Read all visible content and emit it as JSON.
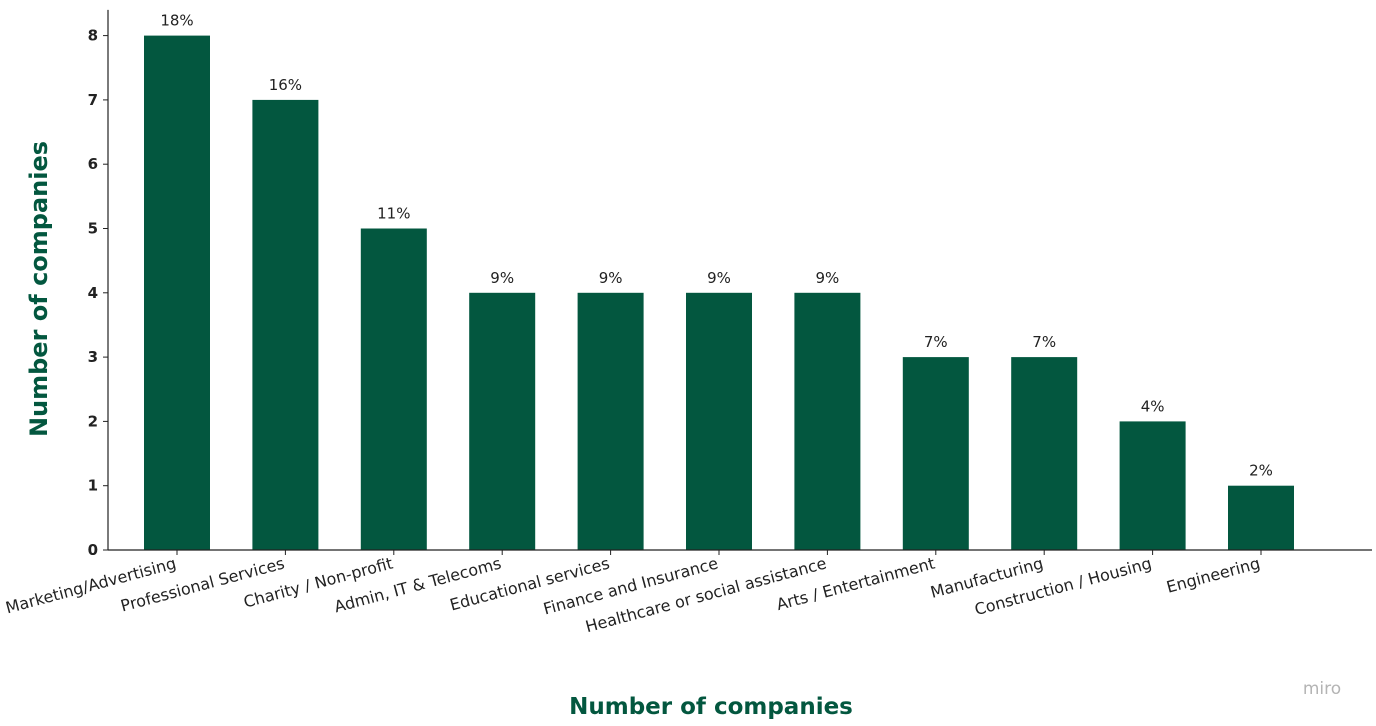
{
  "chart_data": {
    "type": "bar",
    "categories": [
      "Marketing/Advertising",
      "Professional Services",
      "Charity / Non-profit",
      "Admin, IT & Telecoms",
      "Educational services",
      "Finance and Insurance",
      "Healthcare or social assistance",
      "Arts / Entertainment",
      "Manufacturing",
      "Construction / Housing",
      "Engineering"
    ],
    "values": [
      8,
      7,
      5,
      4,
      4,
      4,
      4,
      3,
      3,
      2,
      1
    ],
    "data_labels": [
      "18%",
      "16%",
      "11%",
      "9%",
      "9%",
      "9%",
      "9%",
      "7%",
      "7%",
      "4%",
      "2%"
    ],
    "yticks": [
      "0",
      "1",
      "2",
      "3",
      "4",
      "5",
      "6",
      "7",
      "8"
    ],
    "ylim": [
      0,
      8.4
    ],
    "ylabel": "Number of companies",
    "xlabel": "Number of companies",
    "grid": false,
    "bar_color": "#03573f",
    "label_color": "#03573f"
  },
  "watermark": "miro"
}
